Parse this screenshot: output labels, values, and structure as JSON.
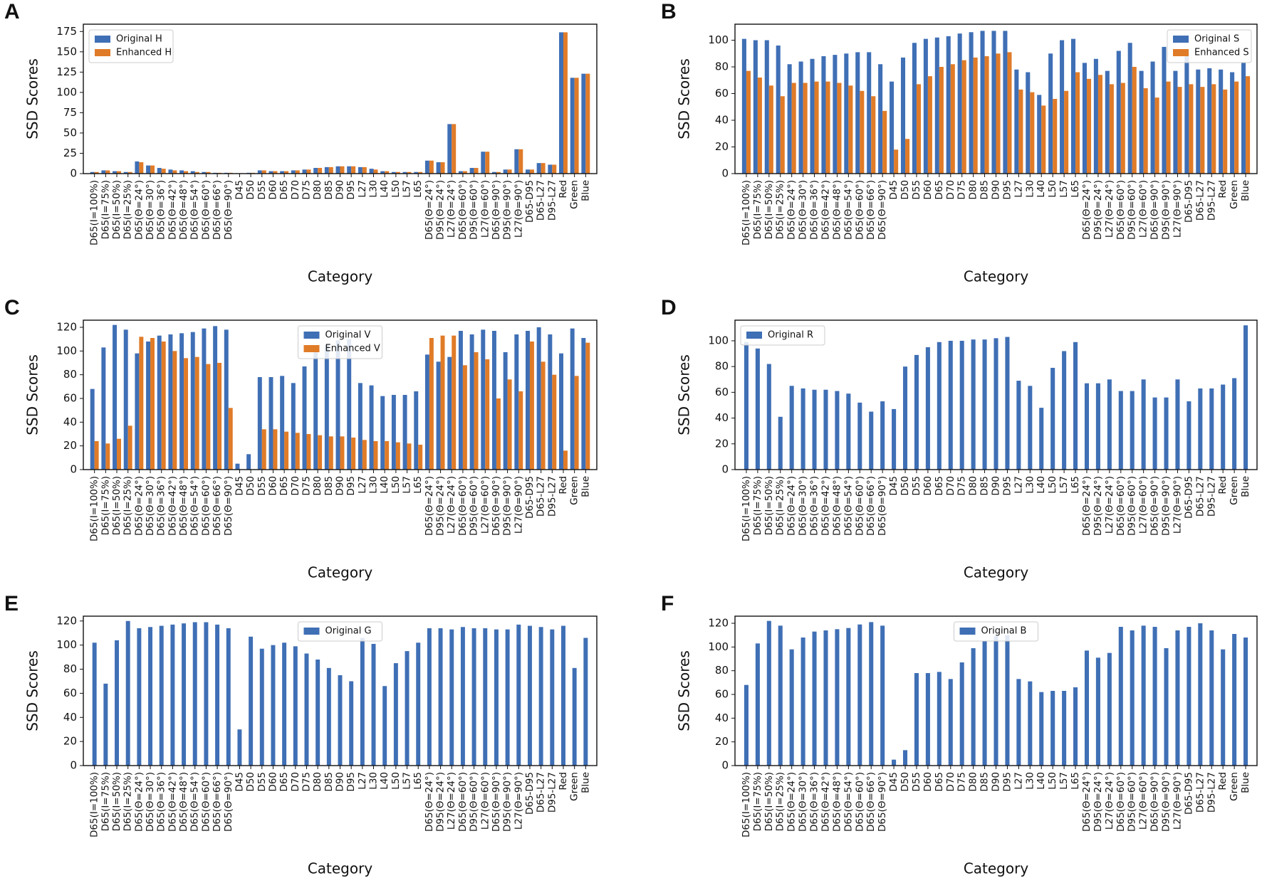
{
  "chart_data": [
    {
      "type": "bar",
      "label": "A",
      "xlabel": "Category",
      "ylabel": "SSD Scores",
      "legend": "upper left",
      "categories": [
        "D65(I=100%)",
        "D65(I=75%)",
        "D65(I=50%)",
        "D65(I=25%)",
        "D65(Θ=24°)",
        "D65(Θ=30°)",
        "D65(Θ=36°)",
        "D65(Θ=42°)",
        "D65(Θ=48°)",
        "D65(Θ=54°)",
        "D65(Θ=60°)",
        "D65(Θ=66°)",
        "D65(Θ=90°)",
        "D45",
        "D50",
        "D55",
        "D60",
        "D65",
        "D70",
        "D75",
        "D80",
        "D85",
        "D90",
        "D95",
        "L27",
        "L30",
        "L40",
        "L50",
        "L57",
        "L65",
        "D65(Θ=24°)",
        "D95(Θ=24°)",
        "L27(Θ=24°)",
        "D65(Θ=60°)",
        "D95(Θ=60°)",
        "L27(Θ=60°)",
        "D65(Θ=90°)",
        "D95(Θ=90°)",
        "L27(Θ=90°)",
        "D65-D95",
        "D65-L27",
        "D95-L27",
        "Red",
        "Green",
        "Blue"
      ],
      "series": [
        {
          "name": "Original H",
          "color": "#3f6fb5",
          "values": [
            2,
            4,
            3,
            2,
            15,
            10,
            7,
            5,
            4,
            3,
            2,
            1,
            1,
            0.5,
            1,
            4,
            3,
            3,
            4,
            5,
            7,
            8,
            9,
            9,
            8,
            6,
            3,
            2,
            2,
            2,
            16,
            14,
            61,
            3,
            7,
            27,
            2,
            5,
            30,
            5,
            13,
            11,
            174,
            118,
            123
          ]
        },
        {
          "name": "Enhanced H",
          "color": "#e07b28",
          "values": [
            2,
            4,
            3,
            2,
            14,
            10,
            6,
            4,
            3,
            2,
            2,
            1,
            1,
            0.5,
            1,
            4,
            3,
            3,
            4,
            5,
            7,
            8,
            9,
            9,
            8,
            5,
            3,
            2,
            2,
            2,
            16,
            14,
            61,
            3,
            7,
            27,
            2,
            5,
            30,
            5,
            13,
            11,
            174,
            118,
            123
          ]
        }
      ],
      "ylim": [
        0,
        184
      ],
      "yticks": [
        0,
        25,
        50,
        75,
        100,
        125,
        150,
        175
      ]
    },
    {
      "type": "bar",
      "label": "B",
      "xlabel": "Category",
      "ylabel": "SSD Scores",
      "legend": "upper right",
      "categories": [
        "D65(I=100%)",
        "D65(I=75%)",
        "D65(I=50%)",
        "D65(I=25%)",
        "D65(Θ=24°)",
        "D65(Θ=30°)",
        "D65(Θ=36°)",
        "D65(Θ=42°)",
        "D65(Θ=48°)",
        "D65(Θ=54°)",
        "D65(Θ=60°)",
        "D65(Θ=66°)",
        "D65(Θ=90°)",
        "D45",
        "D50",
        "D55",
        "D60",
        "D65",
        "D70",
        "D75",
        "D80",
        "D85",
        "D90",
        "D95",
        "L27",
        "L30",
        "L40",
        "L50",
        "L57",
        "L65",
        "D65(Θ=24°)",
        "D95(Θ=24°)",
        "L27(Θ=24°)",
        "D65(Θ=60°)",
        "D95(Θ=60°)",
        "L27(Θ=60°)",
        "D65(Θ=90°)",
        "D95(Θ=90°)",
        "L27(Θ=90°)",
        "D65-D95",
        "D65-L27",
        "D95-L27",
        "Red",
        "Green",
        "Blue"
      ],
      "series": [
        {
          "name": "Original S",
          "color": "#3f6fb5",
          "values": [
            101,
            100,
            100,
            96,
            82,
            84,
            86,
            88,
            89,
            90,
            91,
            91,
            82,
            69,
            87,
            98,
            101,
            102,
            103,
            105,
            106,
            107,
            107,
            107,
            78,
            76,
            59,
            90,
            100,
            101,
            83,
            86,
            77,
            92,
            98,
            77,
            84,
            95,
            77,
            93,
            78,
            79,
            78,
            76,
            83
          ]
        },
        {
          "name": "Enhanced S",
          "color": "#e07b28",
          "values": [
            77,
            72,
            66,
            58,
            68,
            68,
            69,
            69,
            68,
            66,
            62,
            58,
            47,
            18,
            26,
            67,
            73,
            80,
            82,
            85,
            87,
            88,
            90,
            91,
            63,
            61,
            51,
            56,
            62,
            76,
            71,
            74,
            67,
            68,
            80,
            64,
            57,
            69,
            65,
            67,
            65,
            67,
            63,
            69,
            73
          ]
        }
      ],
      "ylim": [
        0,
        112
      ],
      "yticks": [
        0,
        20,
        40,
        60,
        80,
        100
      ]
    },
    {
      "type": "bar",
      "label": "C",
      "xlabel": "Category",
      "ylabel": "SSD Scores",
      "legend": "upper center",
      "categories": [
        "D65(I=100%)",
        "D65(I=75%)",
        "D65(I=50%)",
        "D65(I=25%)",
        "D65(Θ=24°)",
        "D65(Θ=30°)",
        "D65(Θ=36°)",
        "D65(Θ=42°)",
        "D65(Θ=48°)",
        "D65(Θ=54°)",
        "D65(Θ=60°)",
        "D65(Θ=66°)",
        "D65(Θ=90°)",
        "D45",
        "D50",
        "D55",
        "D60",
        "D65",
        "D70",
        "D75",
        "D80",
        "D85",
        "D90",
        "D95",
        "L27",
        "L30",
        "L40",
        "L50",
        "L57",
        "L65",
        "D65(Θ=24°)",
        "D95(Θ=24°)",
        "L27(Θ=24°)",
        "D65(Θ=60°)",
        "D95(Θ=60°)",
        "L27(Θ=60°)",
        "D65(Θ=90°)",
        "D95(Θ=90°)",
        "L27(Θ=90°)",
        "D65-D95",
        "D65-L27",
        "D95-L27",
        "Red",
        "Green",
        "Blue"
      ],
      "series": [
        {
          "name": "Original V",
          "color": "#3f6fb5",
          "values": [
            68,
            103,
            122,
            118,
            98,
            108,
            113,
            114,
            115,
            116,
            119,
            121,
            118,
            5,
            13,
            78,
            78,
            79,
            73,
            87,
            99,
            105,
            109,
            110,
            73,
            71,
            62,
            63,
            63,
            66,
            97,
            91,
            95,
            117,
            114,
            118,
            117,
            99,
            114,
            117,
            120,
            114,
            98,
            119,
            111
          ]
        },
        {
          "name": "Enhanced V",
          "color": "#e07b28",
          "values": [
            24,
            22,
            26,
            37,
            112,
            111,
            108,
            100,
            94,
            95,
            89,
            90,
            52,
            0,
            0,
            34,
            34,
            32,
            31,
            30,
            29,
            28,
            28,
            27,
            25,
            24,
            24,
            23,
            22,
            21,
            111,
            113,
            113,
            88,
            99,
            93,
            60,
            76,
            66,
            108,
            91,
            80,
            16,
            79,
            107
          ]
        }
      ],
      "ylim": [
        0,
        126
      ],
      "yticks": [
        0,
        20,
        40,
        60,
        80,
        100,
        120
      ]
    },
    {
      "type": "bar",
      "label": "D",
      "xlabel": "Category",
      "ylabel": "SSD Scores",
      "legend": "upper left",
      "categories": [
        "D65(I=100%)",
        "D65(I=75%)",
        "D65(I=50%)",
        "D65(I=25%)",
        "D65(Θ=24°)",
        "D65(Θ=30°)",
        "D65(Θ=36°)",
        "D65(Θ=42°)",
        "D65(Θ=48°)",
        "D65(Θ=54°)",
        "D65(Θ=60°)",
        "D65(Θ=66°)",
        "D65(Θ=90°)",
        "D45",
        "D50",
        "D55",
        "D60",
        "D65",
        "D70",
        "D75",
        "D80",
        "D85",
        "D90",
        "D95",
        "L27",
        "L30",
        "L40",
        "L50",
        "L57",
        "L65",
        "D65(Θ=24°)",
        "D95(Θ=24°)",
        "L27(Θ=24°)",
        "D65(Θ=60°)",
        "D95(Θ=60°)",
        "L27(Θ=60°)",
        "D65(Θ=90°)",
        "D95(Θ=90°)",
        "L27(Θ=90°)",
        "D65-D95",
        "D65-L27",
        "D95-L27",
        "Red",
        "Green",
        "Blue"
      ],
      "series": [
        {
          "name": "Original R",
          "color": "#3f6fb5",
          "values": [
            99,
            94,
            82,
            41,
            65,
            63,
            62,
            62,
            61,
            59,
            52,
            45,
            53,
            47,
            80,
            89,
            95,
            99,
            100,
            100,
            101,
            101,
            102,
            103,
            69,
            65,
            48,
            79,
            92,
            99,
            67,
            67,
            70,
            61,
            61,
            70,
            56,
            56,
            70,
            53,
            63,
            63,
            66,
            71,
            112
          ]
        }
      ],
      "ylim": [
        0,
        116
      ],
      "yticks": [
        0,
        20,
        40,
        60,
        80,
        100
      ]
    },
    {
      "type": "bar",
      "label": "E",
      "xlabel": "Category",
      "ylabel": "SSD Scores",
      "legend": "upper center",
      "categories": [
        "D65(I=100%)",
        "D65(I=75%)",
        "D65(I=50%)",
        "D65(I=25%)",
        "D65(Θ=24°)",
        "D65(Θ=30°)",
        "D65(Θ=36°)",
        "D65(Θ=42°)",
        "D65(Θ=48°)",
        "D65(Θ=54°)",
        "D65(Θ=60°)",
        "D65(Θ=66°)",
        "D65(Θ=90°)",
        "D45",
        "D50",
        "D55",
        "D60",
        "D65",
        "D70",
        "D75",
        "D80",
        "D85",
        "D90",
        "D95",
        "L27",
        "L30",
        "L40",
        "L50",
        "L57",
        "L65",
        "D65(Θ=24°)",
        "D95(Θ=24°)",
        "L27(Θ=24°)",
        "D65(Θ=60°)",
        "D95(Θ=60°)",
        "L27(Θ=60°)",
        "D65(Θ=90°)",
        "D95(Θ=90°)",
        "L27(Θ=90°)",
        "D65-D95",
        "D65-L27",
        "D95-L27",
        "Red",
        "Green",
        "Blue"
      ],
      "series": [
        {
          "name": "Original G",
          "color": "#3f6fb5",
          "values": [
            102,
            68,
            104,
            120,
            114,
            115,
            116,
            117,
            118,
            119,
            119,
            117,
            114,
            30,
            107,
            97,
            100,
            102,
            99,
            93,
            88,
            81,
            75,
            70,
            106,
            101,
            66,
            85,
            95,
            102,
            114,
            114,
            113,
            115,
            114,
            114,
            113,
            113,
            117,
            116,
            115,
            113,
            116,
            81,
            106
          ]
        }
      ],
      "ylim": [
        0,
        124
      ],
      "yticks": [
        0,
        20,
        40,
        60,
        80,
        100,
        120
      ]
    },
    {
      "type": "bar",
      "label": "F",
      "xlabel": "Category",
      "ylabel": "SSD Scores",
      "legend": "upper center",
      "categories": [
        "D65(I=100%)",
        "D65(I=75%)",
        "D65(I=50%)",
        "D65(I=25%)",
        "D65(Θ=24°)",
        "D65(Θ=30°)",
        "D65(Θ=36°)",
        "D65(Θ=42°)",
        "D65(Θ=48°)",
        "D65(Θ=54°)",
        "D65(Θ=60°)",
        "D65(Θ=66°)",
        "D65(Θ=90°)",
        "D45",
        "D50",
        "D55",
        "D60",
        "D65",
        "D70",
        "D75",
        "D80",
        "D85",
        "D90",
        "D95",
        "L27",
        "L30",
        "L40",
        "L50",
        "L57",
        "L65",
        "D65(Θ=24°)",
        "D95(Θ=24°)",
        "L27(Θ=24°)",
        "D65(Θ=60°)",
        "D95(Θ=60°)",
        "L27(Θ=60°)",
        "D65(Θ=90°)",
        "D95(Θ=90°)",
        "L27(Θ=90°)",
        "D65-D95",
        "D65-L27",
        "D95-L27",
        "Red",
        "Green",
        "Blue"
      ],
      "series": [
        {
          "name": "Original B",
          "color": "#3f6fb5",
          "values": [
            68,
            103,
            122,
            118,
            98,
            108,
            113,
            114,
            115,
            116,
            119,
            121,
            118,
            5,
            13,
            78,
            78,
            79,
            73,
            87,
            99,
            105,
            109,
            110,
            73,
            71,
            62,
            63,
            63,
            66,
            97,
            91,
            95,
            117,
            114,
            118,
            117,
            99,
            114,
            117,
            120,
            114,
            98,
            111,
            108
          ]
        }
      ],
      "ylim": [
        0,
        126
      ],
      "yticks": [
        0,
        20,
        40,
        60,
        80,
        100,
        120
      ]
    }
  ]
}
